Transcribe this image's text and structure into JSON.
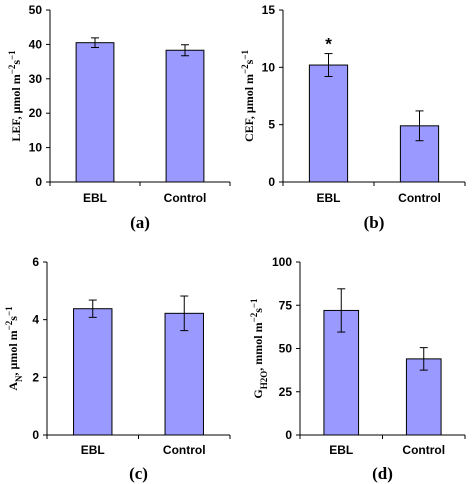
{
  "chart_data": [
    {
      "type": "bar",
      "panel_label": "(a)",
      "ylabel_parts": {
        "base": "LEF, μmol m",
        "sup1": "−2",
        "mid": "s",
        "sup2": "−1"
      },
      "categories": [
        "EBL",
        "Control"
      ],
      "values": [
        40.5,
        38.3
      ],
      "errors": [
        1.4,
        1.6
      ],
      "ylim": [
        0,
        50
      ],
      "yticks": [
        0,
        10,
        20,
        30,
        40,
        50
      ],
      "annotations": []
    },
    {
      "type": "bar",
      "panel_label": "(b)",
      "ylabel_parts": {
        "base": "CEF, μmol m",
        "sup1": "−2",
        "mid": "s",
        "sup2": "−1"
      },
      "categories": [
        "EBL",
        "Control"
      ],
      "values": [
        10.2,
        4.9
      ],
      "errors": [
        1.0,
        1.3
      ],
      "ylim": [
        0,
        15
      ],
      "yticks": [
        0,
        5,
        10,
        15
      ],
      "annotations": [
        {
          "category": "EBL",
          "text": "*"
        }
      ]
    },
    {
      "type": "bar",
      "panel_label": "(c)",
      "ylabel_parts": {
        "base": "A",
        "sub": "N",
        "mid2": ", μmol m",
        "sup1": "−2",
        "mid": "s",
        "sup2": "−1"
      },
      "categories": [
        "EBL",
        "Control"
      ],
      "values": [
        4.38,
        4.22
      ],
      "errors": [
        0.3,
        0.6
      ],
      "ylim": [
        0,
        6
      ],
      "yticks": [
        0,
        2,
        4,
        6
      ],
      "annotations": []
    },
    {
      "type": "bar",
      "panel_label": "(d)",
      "ylabel_parts": {
        "base": "G",
        "sub": "H2O",
        "mid2": ", mmol m",
        "sup1": "−2",
        "mid": "s",
        "sup2": "−1"
      },
      "categories": [
        "EBL",
        "Control"
      ],
      "values": [
        72,
        44
      ],
      "errors": [
        12.5,
        6.5
      ],
      "ylim": [
        0,
        100
      ],
      "yticks": [
        0,
        25,
        50,
        75,
        100
      ],
      "annotations": []
    }
  ]
}
